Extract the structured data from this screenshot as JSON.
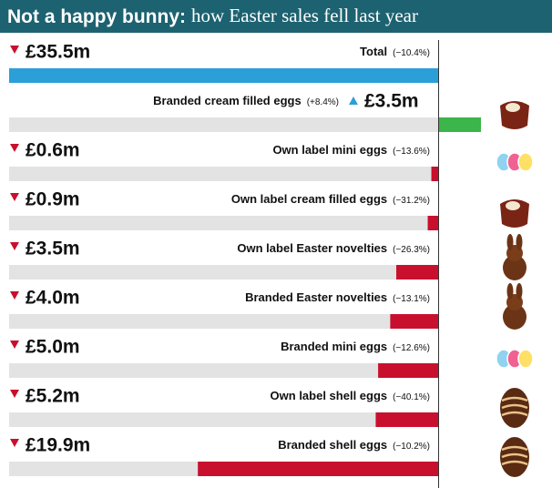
{
  "chart_data": {
    "type": "bar",
    "orientation": "horizontal",
    "title": "Not a happy bunny:",
    "subtitle": "how Easter sales fell last year",
    "categories": [
      "Total",
      "Branded cream filled eggs",
      "Own label mini eggs",
      "Own label cream filled eggs",
      "Own label Easter novelties",
      "Branded Easter novelties",
      "Branded mini eggs",
      "Own label shell eggs",
      "Branded shell eggs"
    ],
    "values": [
      -35.5,
      3.5,
      -0.6,
      -0.9,
      -3.5,
      -4.0,
      -5.0,
      -5.2,
      -19.9
    ],
    "value_labels": [
      "£35.5m",
      "£3.5m",
      "£0.6m",
      "£0.9m",
      "£3.5m",
      "£4.0m",
      "£5.0m",
      "£5.2m",
      "£19.9m"
    ],
    "change_labels": [
      "(−10.4%)",
      "(+8.4%)",
      "(−13.6%)",
      "(−31.2%)",
      "(−26.3%)",
      "(−13.1%)",
      "(−12.6%)",
      "(−40.1%)",
      "(−10.2%)"
    ],
    "colors": [
      "#2a9fd8",
      "#3cb54a",
      "#c8102e",
      "#c8102e",
      "#c8102e",
      "#c8102e",
      "#c8102e",
      "#c8102e",
      "#c8102e"
    ],
    "xlim": [
      -35.5,
      3.5
    ]
  }
}
